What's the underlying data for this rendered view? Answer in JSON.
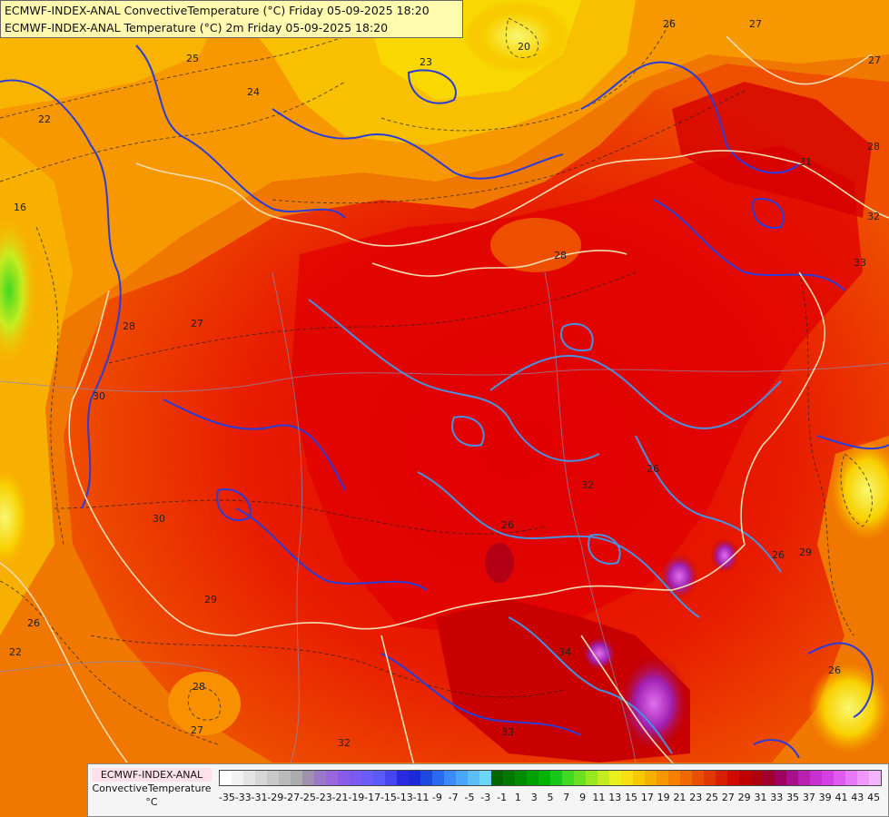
{
  "title": {
    "line1": "ECMWF-INDEX-ANAL ConvectiveTemperature (°C) Friday 05-09-2025 18:20",
    "line2": "ECMWF-INDEX-ANAL Temperature (°C) 2m Friday 05-09-2025 18:20"
  },
  "legend": {
    "model": "ECMWF-INDEX-ANAL",
    "variable": "ConvectiveTemperature",
    "unit": "°C",
    "tick_labels": [
      "-35",
      "-33",
      "-31",
      "-29",
      "-27",
      "-25",
      "-23",
      "-21",
      "-19",
      "-17",
      "-15",
      "-13",
      "-11",
      "-9",
      "-7",
      "-5",
      "-3",
      "-1",
      "1",
      "3",
      "5",
      "7",
      "9",
      "11",
      "13",
      "15",
      "17",
      "19",
      "21",
      "23",
      "25",
      "27",
      "29",
      "31",
      "33",
      "35",
      "37",
      "39",
      "41",
      "43",
      "45"
    ],
    "colors": [
      "#ffffff",
      "#f2f2f2",
      "#e4e4e4",
      "#d6d6d6",
      "#c8c8c8",
      "#bababa",
      "#acacac",
      "#a090b0",
      "#9a78c8",
      "#9a66dc",
      "#8a5ae8",
      "#7c5af2",
      "#6a5cf8",
      "#5a5af8",
      "#4646f0",
      "#2a2ae0",
      "#1a2ad8",
      "#1a4ae0",
      "#2a6af0",
      "#3a8af8",
      "#4aa6f8",
      "#5abef8",
      "#6ad6f8",
      "#006400",
      "#007800",
      "#008c00",
      "#00a000",
      "#00b400",
      "#18c818",
      "#40d820",
      "#6ae020",
      "#98e820",
      "#c4ec20",
      "#eaf01e",
      "#f8e010",
      "#f8c800",
      "#f8b000",
      "#f89800",
      "#f88000",
      "#f06800",
      "#e85000",
      "#e03800",
      "#d82000",
      "#d00a00",
      "#c00000",
      "#b00010",
      "#a00030",
      "#a00060",
      "#a8108c",
      "#b820b0",
      "#c830d0",
      "#d440e4",
      "#de5af0",
      "#e878f6",
      "#f098fa",
      "#f4b4fc"
    ],
    "selected_ticks_note": ""
  },
  "contour_labels": [
    {
      "text": "20"
    },
    {
      "text": "25"
    },
    {
      "text": "23"
    },
    {
      "text": "26"
    },
    {
      "text": "27"
    },
    {
      "text": "24"
    },
    {
      "text": "22"
    },
    {
      "text": "28"
    },
    {
      "text": "31"
    },
    {
      "text": "32"
    },
    {
      "text": "33"
    },
    {
      "text": "29"
    },
    {
      "text": "30"
    },
    {
      "text": "34"
    },
    {
      "text": "16"
    }
  ]
}
